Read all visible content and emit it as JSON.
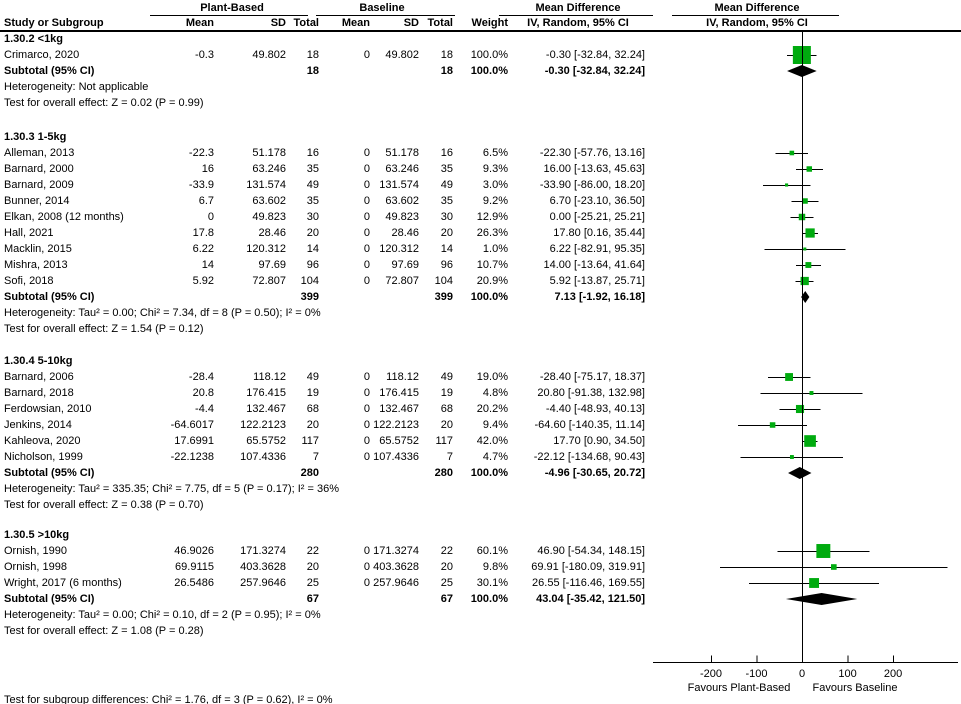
{
  "header": {
    "row1": {
      "group1": "Plant-Based",
      "group2": "Baseline",
      "md_text": "Mean Difference",
      "md_plot": "Mean Difference"
    },
    "row2": {
      "study": "Study or Subgroup",
      "mean": "Mean",
      "sd": "SD",
      "total": "Total",
      "bmean": "Mean",
      "bsd": "SD",
      "btotal": "Total",
      "weight": "Weight",
      "ci": "IV, Random, 95% CI",
      "ci_plot": "IV, Random, 95% CI"
    }
  },
  "footer": {
    "subgroup_test": "Test for subgroup differences: Chi² = 1.76, df = 3 (P = 0.62), I² = 0%"
  },
  "colors": {
    "marker_green": "#00AB0F",
    "diamond": "#000000",
    "line": "#000000",
    "text": "#000000"
  },
  "chart_data": {
    "type": "forest",
    "title": "Mean Difference IV, Random, 95% CI",
    "x_ticks": [
      -200,
      -100,
      0,
      100,
      200
    ],
    "xlim": [
      -325,
      345
    ],
    "x_axis_labels": {
      "left": "Favours Plant-Based",
      "right": "Favours Baseline"
    },
    "sections": [
      {
        "heading": "1.30.2 <1kg",
        "studies": [
          {
            "label": "Crimarco, 2020",
            "mean": "-0.3",
            "sd": "49.802",
            "total": "18",
            "bmean": "0",
            "bsd": "49.802",
            "btotal": "18",
            "weight": "100.0%",
            "ci": "-0.30 [-32.84, 32.24]",
            "est": -0.3,
            "lo": -32.84,
            "hi": 32.24,
            "w": 100.0
          }
        ],
        "subtotal": {
          "label": "Subtotal (95% CI)",
          "total": "18",
          "btotal": "18",
          "weight": "100.0%",
          "ci": "-0.30 [-32.84, 32.24]",
          "est": -0.3,
          "lo": -32.84,
          "hi": 32.24
        },
        "heterogeneity": "Heterogeneity: Not applicable",
        "test": "Test for overall effect: Z = 0.02 (P = 0.99)"
      },
      {
        "heading": "1.30.3 1-5kg",
        "studies": [
          {
            "label": "Alleman, 2013",
            "mean": "-22.3",
            "sd": "51.178",
            "total": "16",
            "bmean": "0",
            "bsd": "51.178",
            "btotal": "16",
            "weight": "6.5%",
            "ci": "-22.30 [-57.76, 13.16]",
            "est": -22.3,
            "lo": -57.76,
            "hi": 13.16,
            "w": 6.5
          },
          {
            "label": "Barnard, 2000",
            "mean": "16",
            "sd": "63.246",
            "total": "35",
            "bmean": "0",
            "bsd": "63.246",
            "btotal": "35",
            "weight": "9.3%",
            "ci": "16.00 [-13.63, 45.63]",
            "est": 16,
            "lo": -13.63,
            "hi": 45.63,
            "w": 9.3
          },
          {
            "label": "Barnard, 2009",
            "mean": "-33.9",
            "sd": "131.574",
            "total": "49",
            "bmean": "0",
            "bsd": "131.574",
            "btotal": "49",
            "weight": "3.0%",
            "ci": "-33.90 [-86.00, 18.20]",
            "est": -33.9,
            "lo": -86.0,
            "hi": 18.2,
            "w": 3.0
          },
          {
            "label": "Bunner, 2014",
            "mean": "6.7",
            "sd": "63.602",
            "total": "35",
            "bmean": "0",
            "bsd": "63.602",
            "btotal": "35",
            "weight": "9.2%",
            "ci": "6.70 [-23.10, 36.50]",
            "est": 6.7,
            "lo": -23.1,
            "hi": 36.5,
            "w": 9.2
          },
          {
            "label": "Elkan, 2008 (12 months)",
            "mean": "0",
            "sd": "49.823",
            "total": "30",
            "bmean": "0",
            "bsd": "49.823",
            "btotal": "30",
            "weight": "12.9%",
            "ci": "0.00 [-25.21, 25.21]",
            "est": 0,
            "lo": -25.21,
            "hi": 25.21,
            "w": 12.9
          },
          {
            "label": "Hall, 2021",
            "mean": "17.8",
            "sd": "28.46",
            "total": "20",
            "bmean": "0",
            "bsd": "28.46",
            "btotal": "20",
            "weight": "26.3%",
            "ci": "17.80 [0.16, 35.44]",
            "est": 17.8,
            "lo": 0.16,
            "hi": 35.44,
            "w": 26.3
          },
          {
            "label": "Macklin, 2015",
            "mean": "6.22",
            "sd": "120.312",
            "total": "14",
            "bmean": "0",
            "bsd": "120.312",
            "btotal": "14",
            "weight": "1.0%",
            "ci": "6.22 [-82.91, 95.35]",
            "est": 6.22,
            "lo": -82.91,
            "hi": 95.35,
            "w": 1.0
          },
          {
            "label": "Mishra, 2013",
            "mean": "14",
            "sd": "97.69",
            "total": "96",
            "bmean": "0",
            "bsd": "97.69",
            "btotal": "96",
            "weight": "10.7%",
            "ci": "14.00 [-13.64, 41.64]",
            "est": 14,
            "lo": -13.64,
            "hi": 41.64,
            "w": 10.7
          },
          {
            "label": "Sofi, 2018",
            "mean": "5.92",
            "sd": "72.807",
            "total": "104",
            "bmean": "0",
            "bsd": "72.807",
            "btotal": "104",
            "weight": "20.9%",
            "ci": "5.92 [-13.87, 25.71]",
            "est": 5.92,
            "lo": -13.87,
            "hi": 25.71,
            "w": 20.9
          }
        ],
        "subtotal": {
          "label": "Subtotal (95% CI)",
          "total": "399",
          "btotal": "399",
          "weight": "100.0%",
          "ci": "7.13 [-1.92, 16.18]",
          "est": 7.13,
          "lo": -1.92,
          "hi": 16.18
        },
        "heterogeneity": "Heterogeneity: Tau² = 0.00; Chi² = 7.34, df = 8 (P = 0.50); I² = 0%",
        "test": "Test for overall effect: Z = 1.54 (P = 0.12)"
      },
      {
        "heading": "1.30.4 5-10kg",
        "studies": [
          {
            "label": "Barnard, 2006",
            "mean": "-28.4",
            "sd": "118.12",
            "total": "49",
            "bmean": "0",
            "bsd": "118.12",
            "btotal": "49",
            "weight": "19.0%",
            "ci": "-28.40 [-75.17, 18.37]",
            "est": -28.4,
            "lo": -75.17,
            "hi": 18.37,
            "w": 19.0
          },
          {
            "label": "Barnard, 2018",
            "mean": "20.8",
            "sd": "176.415",
            "total": "19",
            "bmean": "0",
            "bsd": "176.415",
            "btotal": "19",
            "weight": "4.8%",
            "ci": "20.80 [-91.38, 132.98]",
            "est": 20.8,
            "lo": -91.38,
            "hi": 132.98,
            "w": 4.8
          },
          {
            "label": "Ferdowsian, 2010",
            "mean": "-4.4",
            "sd": "132.467",
            "total": "68",
            "bmean": "0",
            "bsd": "132.467",
            "btotal": "68",
            "weight": "20.2%",
            "ci": "-4.40 [-48.93, 40.13]",
            "est": -4.4,
            "lo": -48.93,
            "hi": 40.13,
            "w": 20.2
          },
          {
            "label": "Jenkins, 2014",
            "mean": "-64.6017",
            "sd": "122.2123",
            "total": "20",
            "bmean": "0",
            "bsd": "122.2123",
            "btotal": "20",
            "weight": "9.4%",
            "ci": "-64.60 [-140.35, 11.14]",
            "est": -64.6,
            "lo": -140.35,
            "hi": 11.14,
            "w": 9.4
          },
          {
            "label": "Kahleova, 2020",
            "mean": "17.6991",
            "sd": "65.5752",
            "total": "117",
            "bmean": "0",
            "bsd": "65.5752",
            "btotal": "117",
            "weight": "42.0%",
            "ci": "17.70 [0.90, 34.50]",
            "est": 17.7,
            "lo": 0.9,
            "hi": 34.5,
            "w": 42.0
          },
          {
            "label": "Nicholson, 1999",
            "mean": "-22.1238",
            "sd": "107.4336",
            "total": "7",
            "bmean": "0",
            "bsd": "107.4336",
            "btotal": "7",
            "weight": "4.7%",
            "ci": "-22.12 [-134.68, 90.43]",
            "est": -22.12,
            "lo": -134.68,
            "hi": 90.43,
            "w": 4.7
          }
        ],
        "subtotal": {
          "label": "Subtotal (95% CI)",
          "total": "280",
          "btotal": "280",
          "weight": "100.0%",
          "ci": "-4.96 [-30.65, 20.72]",
          "est": -4.96,
          "lo": -30.65,
          "hi": 20.72
        },
        "heterogeneity": "Heterogeneity: Tau² = 335.35; Chi² = 7.75, df = 5 (P = 0.17); I² = 36%",
        "test": "Test for overall effect: Z = 0.38 (P = 0.70)"
      },
      {
        "heading": "1.30.5 >10kg",
        "studies": [
          {
            "label": "Ornish, 1990",
            "mean": "46.9026",
            "sd": "171.3274",
            "total": "22",
            "bmean": "0",
            "bsd": "171.3274",
            "btotal": "22",
            "weight": "60.1%",
            "ci": "46.90 [-54.34, 148.15]",
            "est": 46.9,
            "lo": -54.34,
            "hi": 148.15,
            "w": 60.1
          },
          {
            "label": "Ornish, 1998",
            "mean": "69.9115",
            "sd": "403.3628",
            "total": "20",
            "bmean": "0",
            "bsd": "403.3628",
            "btotal": "20",
            "weight": "9.8%",
            "ci": "69.91 [-180.09, 319.91]",
            "est": 69.91,
            "lo": -180.09,
            "hi": 319.91,
            "w": 9.8
          },
          {
            "label": "Wright, 2017 (6 months)",
            "mean": "26.5486",
            "sd": "257.9646",
            "total": "25",
            "bmean": "0",
            "bsd": "257.9646",
            "btotal": "25",
            "weight": "30.1%",
            "ci": "26.55 [-116.46, 169.55]",
            "est": 26.55,
            "lo": -116.46,
            "hi": 169.55,
            "w": 30.1
          }
        ],
        "subtotal": {
          "label": "Subtotal (95% CI)",
          "total": "67",
          "btotal": "67",
          "weight": "100.0%",
          "ci": "43.04 [-35.42, 121.50]",
          "est": 43.04,
          "lo": -35.42,
          "hi": 121.5
        },
        "heterogeneity": "Heterogeneity: Tau² = 0.00; Chi² = 0.10, df = 2 (P = 0.95); I² = 0%",
        "test": "Test for overall effect: Z = 1.08 (P = 0.28)"
      }
    ]
  }
}
